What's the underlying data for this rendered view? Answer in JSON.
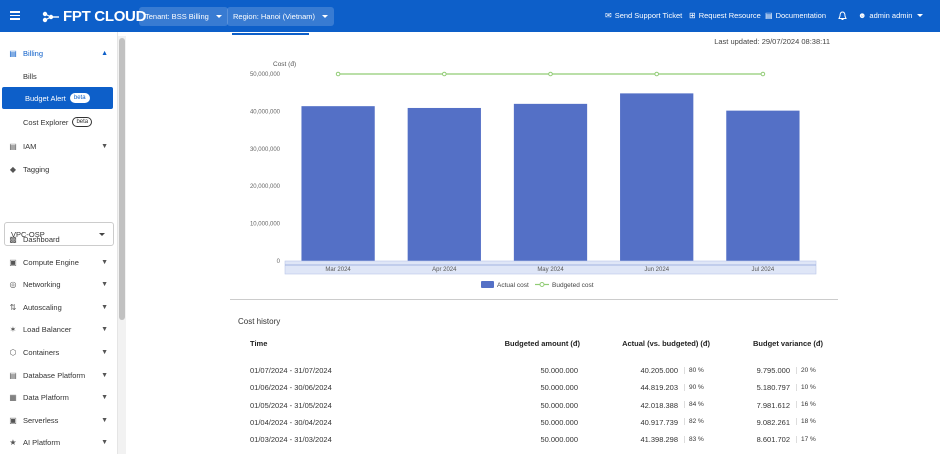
{
  "header": {
    "logo": "FPT CLOUD",
    "tenant": "Tenant: BSS Billing",
    "region": "Region: Hanoi (Vietnam)",
    "links": [
      {
        "label": "Send Support Ticket",
        "icon": "support-ticket-icon"
      },
      {
        "label": "Request Resource",
        "icon": "request-resource-icon"
      },
      {
        "label": "Documentation",
        "icon": "documentation-icon"
      }
    ],
    "user": "admin admin"
  },
  "sidebar": {
    "billing": "Billing",
    "bills": "Bills",
    "budget_alert": "Budget Alert",
    "cost_explorer": "Cost Explorer",
    "beta": "beta",
    "iam": "IAM",
    "tagging": "Tagging",
    "vpc": "VPC-OSP",
    "items": [
      "Dashboard",
      "Compute Engine",
      "Networking",
      "Autoscaling",
      "Load Balancer",
      "Containers",
      "Database Platform",
      "Data Platform",
      "Serverless",
      "AI Platform"
    ]
  },
  "main": {
    "last_updated": "Last updated: 29/07/2024 08:38:11"
  },
  "chart_data": {
    "type": "bar",
    "ylabel": "Cost (đ)",
    "categories": [
      "Mar 2024",
      "Apr 2024",
      "May 2024",
      "Jun 2024",
      "Jul 2024"
    ],
    "series": [
      {
        "name": "Actual cost",
        "type": "bar",
        "color": "#5470c6",
        "values": [
          41398298,
          40917739,
          42018388,
          44819203,
          40205000
        ]
      },
      {
        "name": "Budgeted cost",
        "type": "line",
        "color": "#91cc75",
        "values": [
          50000000,
          50000000,
          50000000,
          50000000,
          50000000
        ]
      }
    ],
    "yticks": [
      "0",
      "10,000,000",
      "20,000,000",
      "30,000,000",
      "40,000,000",
      "50,000,000"
    ],
    "ylim": [
      0,
      50000000
    ],
    "legend": "bottom-center"
  },
  "history": {
    "title": "Cost history",
    "columns": [
      "Time",
      "Budgeted amount (đ)",
      "Actual (vs. budgeted) (đ)",
      "Budget variance (đ)"
    ],
    "rows": [
      {
        "time": "01/07/2024 - 31/07/2024",
        "budget": "50.000.000",
        "actual": "40.205.000",
        "actual_pct": "80 %",
        "variance": "9.795.000",
        "variance_pct": "20 %"
      },
      {
        "time": "01/06/2024 - 30/06/2024",
        "budget": "50.000.000",
        "actual": "44.819.203",
        "actual_pct": "90 %",
        "variance": "5.180.797",
        "variance_pct": "10 %"
      },
      {
        "time": "01/05/2024 - 31/05/2024",
        "budget": "50.000.000",
        "actual": "42.018.388",
        "actual_pct": "84 %",
        "variance": "7.981.612",
        "variance_pct": "16 %"
      },
      {
        "time": "01/04/2024 - 30/04/2024",
        "budget": "50.000.000",
        "actual": "40.917.739",
        "actual_pct": "82 %",
        "variance": "9.082.261",
        "variance_pct": "18 %"
      },
      {
        "time": "01/03/2024 - 31/03/2024",
        "budget": "50.000.000",
        "actual": "41.398.298",
        "actual_pct": "83 %",
        "variance": "8.601.702",
        "variance_pct": "17 %"
      }
    ]
  }
}
